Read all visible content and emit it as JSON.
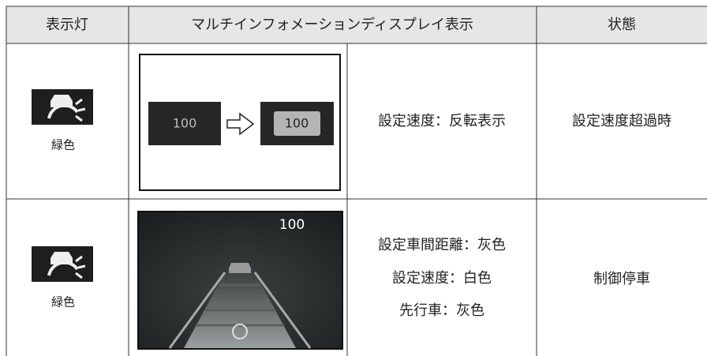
{
  "table": {
    "header": [
      "表示灯",
      "マルチインフォメーションディスプレイ表示",
      "状態"
    ],
    "rows": [
      {
        "indicator_label": "緑色",
        "display_before": "100",
        "display_after": "100",
        "description": [
          "設定速度：反転表示"
        ],
        "status": "設定速度超過時"
      },
      {
        "indicator_label": "緑色",
        "display_speed": "100",
        "description": [
          "設定車間距離：灰色",
          "設定速度：白色",
          "先行車：灰色"
        ],
        "status": "制御停車"
      }
    ]
  }
}
